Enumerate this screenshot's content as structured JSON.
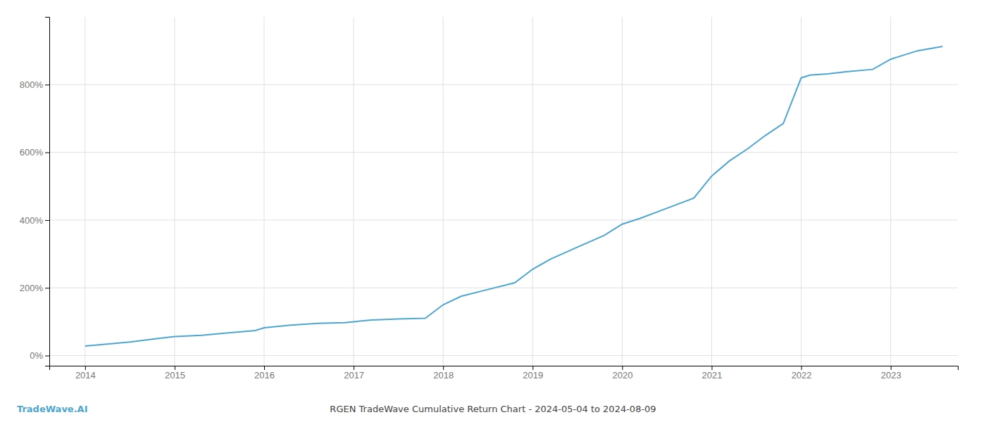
{
  "chart_data": {
    "type": "line",
    "title": "RGEN TradeWave Cumulative Return Chart - 2024-05-04 to 2024-08-09",
    "annotations": [
      "TradeWave.AI"
    ],
    "color": "#4da6d0",
    "x": [
      2014.0,
      2014.2,
      2014.5,
      2014.8,
      2015.0,
      2015.3,
      2015.6,
      2015.9,
      2016.0,
      2016.3,
      2016.6,
      2016.9,
      2017.0,
      2017.2,
      2017.5,
      2017.8,
      2018.0,
      2018.2,
      2018.5,
      2018.8,
      2019.0,
      2019.2,
      2019.5,
      2019.8,
      2020.0,
      2020.2,
      2020.5,
      2020.8,
      2021.0,
      2021.2,
      2021.4,
      2021.6,
      2021.8,
      2022.0,
      2022.1,
      2022.3,
      2022.5,
      2022.8,
      2023.0,
      2023.3,
      2023.58
    ],
    "values": [
      28,
      33,
      40,
      50,
      56,
      60,
      67,
      74,
      82,
      90,
      95,
      97,
      100,
      105,
      108,
      110,
      150,
      175,
      195,
      215,
      255,
      285,
      320,
      355,
      388,
      405,
      435,
      465,
      530,
      575,
      610,
      650,
      685,
      820,
      828,
      832,
      838,
      845,
      875,
      900,
      913
    ],
    "xlim": [
      2013.6,
      2023.75
    ],
    "ylim": [
      -30,
      1000
    ],
    "xticks": [
      2014,
      2015,
      2016,
      2017,
      2018,
      2019,
      2020,
      2021,
      2022,
      2023
    ],
    "yticks": [
      {
        "value": 0,
        "label": "0%"
      },
      {
        "value": 200,
        "label": "200%"
      },
      {
        "value": 400,
        "label": "400%"
      },
      {
        "value": 600,
        "label": "600%"
      },
      {
        "value": 800,
        "label": "800%"
      }
    ],
    "grid": true
  }
}
